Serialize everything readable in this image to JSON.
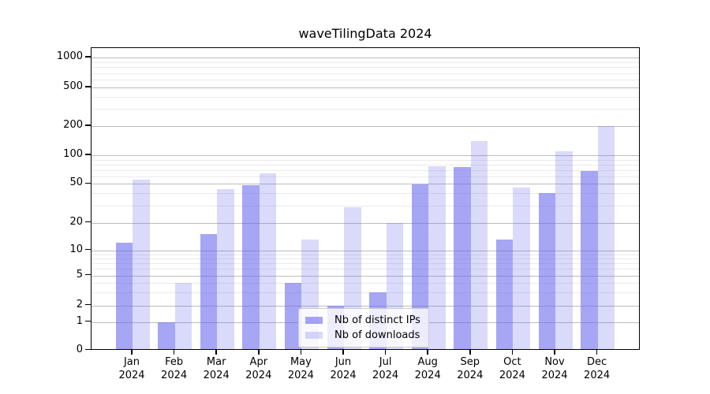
{
  "chart_data": {
    "type": "bar",
    "title": "waveTilingData 2024",
    "months": [
      "Jan",
      "Feb",
      "Mar",
      "Apr",
      "May",
      "Jun",
      "Jul",
      "Aug",
      "Sep",
      "Oct",
      "Nov",
      "Dec"
    ],
    "year": "2024",
    "series": [
      {
        "name": "Nb of distinct IPs",
        "color": "rgba(102,102,238,0.58)",
        "values": [
          12,
          1,
          15,
          48,
          4,
          2,
          3,
          49,
          75,
          13,
          40,
          68
        ]
      },
      {
        "name": "Nb of downloads",
        "color": "rgba(102,102,238,0.24)",
        "values": [
          55,
          4,
          44,
          65,
          13,
          29,
          20,
          77,
          140,
          46,
          110,
          200
        ]
      }
    ],
    "yticks": [
      0,
      1,
      2,
      5,
      10,
      20,
      50,
      100,
      200,
      500,
      1000
    ],
    "yscale": "symlog",
    "ylim": [
      0,
      1000
    ],
    "xlabel": "",
    "ylabel": "",
    "grid": "horizontal major + minor",
    "legend_position": "inside lower center"
  }
}
